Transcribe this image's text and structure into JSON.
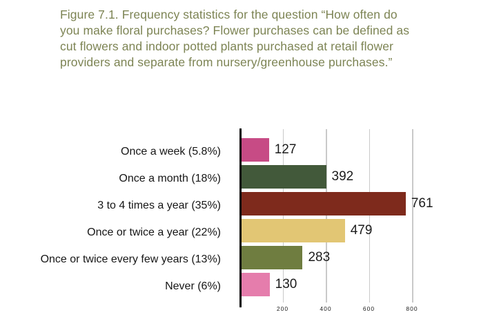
{
  "figure": {
    "title_lines": [
      "Figure 7.1. Frequency statistics for the question “How often do",
      "you make floral purchases? Flower purchases can be defined as",
      "cut flowers and indoor potted plants purchased at retail flower",
      "providers and separate from nursery/greenhouse purchases.”"
    ]
  },
  "chart_data": {
    "type": "bar",
    "orientation": "horizontal",
    "title": "Figure 7.1. Frequency statistics for the question “How often do you make floral purchases? Flower purchases can be defined as cut flowers and indoor potted plants purchased at retail flower providers and separate from nursery/greenhouse purchases.”",
    "categories": [
      "Once a week (5.8%)",
      "Once a month (18%)",
      "3 to 4 times a year (35%)",
      "Once or twice a year (22%)",
      "Once or twice every few years (13%)",
      "Never (6%)"
    ],
    "values": [
      127,
      392,
      761,
      479,
      283,
      130
    ],
    "percentages": [
      5.8,
      18,
      35,
      22,
      13,
      6
    ],
    "bar_colors": [
      "#c74b85",
      "#42593a",
      "#7e2a1c",
      "#e2c674",
      "#6f7d40",
      "#e57dac"
    ],
    "xticks": [
      200,
      400,
      600,
      800
    ],
    "xlim": [
      0,
      1050
    ],
    "xlabel": "",
    "ylabel": "",
    "grid": true,
    "legend": false
  },
  "style": {
    "title_color": "#7d8454",
    "label_color": "#161616",
    "gridline_color": "#c9c9c9",
    "axis_color": "#000000",
    "background": "#ffffff"
  }
}
